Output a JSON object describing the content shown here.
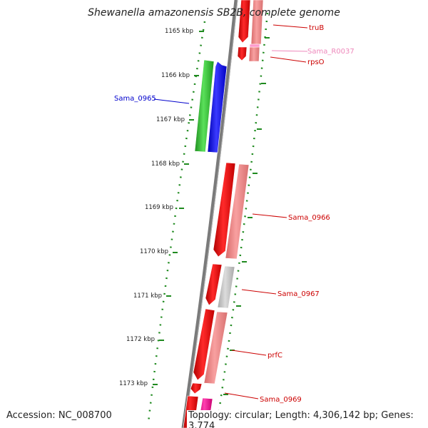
{
  "title": "Shewanella amazonensis SB2B, complete genome",
  "accession_label": "Accession: NC_008700",
  "topology_label": "Topology: circular; Length: 4,306,142 bp; Genes: 3,774",
  "colors": {
    "backbone": "#7a7a7a",
    "tick": "#1f8a1f",
    "gene_red": "#e8121a",
    "gene_pink": "#f08080",
    "gene_gray": "#c0c0c0",
    "gene_green": "#2db82d",
    "gene_blue": "#1a1aff",
    "gene_magenta": "#ff1aa0",
    "label_red": "#cc0000",
    "label_blue": "#0000cc",
    "label_pink": "#ee88bb"
  },
  "scale_labels": [
    "1165 kbp",
    "1166 kbp",
    "1167 kbp",
    "1168 kbp",
    "1169 kbp",
    "1170 kbp",
    "1171 kbp",
    "1172 kbp",
    "1173 kbp"
  ],
  "gene_labels": [
    {
      "name": "truB",
      "color_key": "label_red"
    },
    {
      "name": "Sama_R0037",
      "color_key": "label_pink"
    },
    {
      "name": "rpsO",
      "color_key": "label_red"
    },
    {
      "name": "Sama_0965",
      "color_key": "label_blue"
    },
    {
      "name": "Sama_0966",
      "color_key": "label_red"
    },
    {
      "name": "Sama_0967",
      "color_key": "label_red"
    },
    {
      "name": "prfC",
      "color_key": "label_red"
    },
    {
      "name": "Sama_0969",
      "color_key": "label_red"
    }
  ]
}
